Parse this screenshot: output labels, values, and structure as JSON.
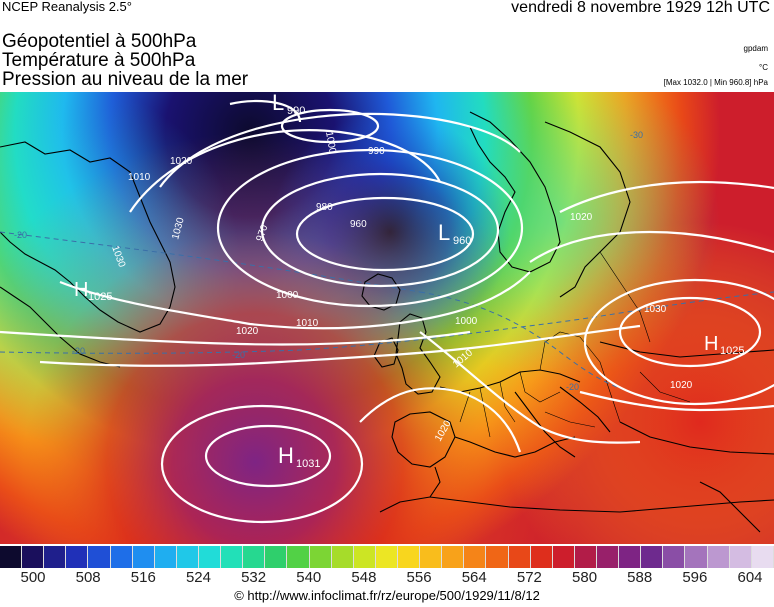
{
  "header": {
    "source": "NCEP Reanalysis 2.5°",
    "datetime": "vendredi 8 novembre 1929 12h UTC",
    "titles": [
      "Géopotentiel à 500hPa",
      "Température à 500hPa",
      "Pression au niveau de la mer"
    ],
    "units": [
      "gpdam",
      "°C",
      "[Max 1032.0 | Min 960.8] hPa"
    ]
  },
  "map": {
    "lows": [
      {
        "letter": "L",
        "value": "990"
      },
      {
        "letter": "L",
        "value": "960"
      }
    ],
    "highs": [
      {
        "letter": "H",
        "value": "1031"
      },
      {
        "letter": "H",
        "value": "1025"
      },
      {
        "letter": "H",
        "value": "1025"
      }
    ],
    "isobar_labels": [
      "1000",
      "990",
      "980",
      "970",
      "960",
      "1010",
      "1020",
      "1030",
      "1000",
      "1010",
      "1020",
      "1030",
      "1020",
      "1010",
      "1020",
      "1030",
      "1020",
      "1000"
    ],
    "temperature_labels": [
      "-20",
      "-20",
      "-20",
      "-30",
      "-20"
    ]
  },
  "colorscale": {
    "colors": [
      "#0d0a2e",
      "#1a0f5c",
      "#1f1f8c",
      "#2030b8",
      "#1f4fd6",
      "#1e6ee8",
      "#1f8ef0",
      "#1faef0",
      "#20c8e8",
      "#21dcd8",
      "#22e0b8",
      "#26d890",
      "#2fcf6c",
      "#52d146",
      "#7cd534",
      "#a6dc2a",
      "#cce524",
      "#ece624",
      "#f8d61e",
      "#f9bd1c",
      "#f8a21a",
      "#f58418",
      "#f06616",
      "#e84818",
      "#de2e1c",
      "#cd1e2c",
      "#b21c48",
      "#98206a",
      "#7e2484",
      "#6e2a8e",
      "#8a4ea6",
      "#a474bc",
      "#bc98d0",
      "#d4bce2",
      "#e8dcf0"
    ],
    "ticks": [
      "500",
      "508",
      "516",
      "524",
      "532",
      "540",
      "548",
      "556",
      "564",
      "572",
      "580",
      "588",
      "596",
      "604"
    ]
  },
  "credit": "© http://www.infoclimat.fr/rz/europe/500/1929/11/8/12"
}
